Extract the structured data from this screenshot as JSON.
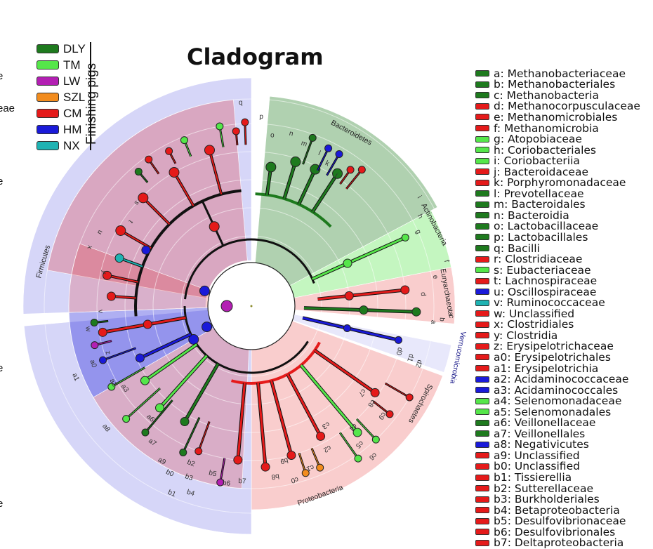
{
  "title": "Cladogram",
  "group_header": "Finishing pigs",
  "groups": [
    {
      "label": "DLY",
      "color": "#1e7a1e"
    },
    {
      "label": "TM",
      "color": "#55e64a"
    },
    {
      "label": "LW",
      "color": "#b31fb3"
    },
    {
      "label": "SZL",
      "color": "#f28c1e"
    },
    {
      "label": "CM",
      "color": "#e51a1a"
    },
    {
      "label": "HM",
      "color": "#1a1ad9"
    },
    {
      "label": "NX",
      "color": "#1fb3b3"
    }
  ],
  "edge_fragments": [
    "e",
    "eae",
    "e",
    "e",
    "e"
  ],
  "legend": [
    {
      "key": "a",
      "text": "a: Methanobacteriaceae",
      "group": "DLY"
    },
    {
      "key": "b",
      "text": "b: Methanobacteriales",
      "group": "DLY"
    },
    {
      "key": "c",
      "text": "c: Methanobacteria",
      "group": "DLY"
    },
    {
      "key": "d",
      "text": "d: Methanocorpusculaceae",
      "group": "CM"
    },
    {
      "key": "e",
      "text": "e: Methanomicrobiales",
      "group": "CM"
    },
    {
      "key": "f",
      "text": "f: Methanomicrobia",
      "group": "CM"
    },
    {
      "key": "g",
      "text": "g: Atopobiaceae",
      "group": "TM"
    },
    {
      "key": "h",
      "text": "h: Coriobacteriales",
      "group": "TM"
    },
    {
      "key": "i",
      "text": "i: Coriobacteriia",
      "group": "TM"
    },
    {
      "key": "j",
      "text": "j: Bacteroidaceae",
      "group": "CM"
    },
    {
      "key": "k",
      "text": "k: Porphyromonadaceae",
      "group": "CM"
    },
    {
      "key": "l",
      "text": "l: Prevotellaceae",
      "group": "DLY"
    },
    {
      "key": "m",
      "text": "m: Bacteroidales",
      "group": "DLY"
    },
    {
      "key": "n",
      "text": "n: Bacteroidia",
      "group": "DLY"
    },
    {
      "key": "o",
      "text": "o: Lactobacillaceae",
      "group": "DLY"
    },
    {
      "key": "p",
      "text": "p: Lactobacillales",
      "group": "DLY"
    },
    {
      "key": "q",
      "text": "q: Bacilli",
      "group": "DLY"
    },
    {
      "key": "r",
      "text": "r: Clostridiaceae",
      "group": "CM"
    },
    {
      "key": "s",
      "text": "s: Eubacteriaceae",
      "group": "TM"
    },
    {
      "key": "t",
      "text": "t: Lachnospiraceae",
      "group": "CM"
    },
    {
      "key": "u",
      "text": "u: Oscillospiraceae",
      "group": "HM"
    },
    {
      "key": "v",
      "text": "v: Ruminococcaceae",
      "group": "NX"
    },
    {
      "key": "w",
      "text": "w: Unclassified",
      "group": "CM"
    },
    {
      "key": "x",
      "text": "x: Clostridiales",
      "group": "CM"
    },
    {
      "key": "y",
      "text": "y: Clostridia",
      "group": "CM"
    },
    {
      "key": "z",
      "text": "z: Erysipelotrichaceae",
      "group": "CM"
    },
    {
      "key": "a0",
      "text": "a0: Erysipelotrichales",
      "group": "CM"
    },
    {
      "key": "a1",
      "text": "a1: Erysipelotrichia",
      "group": "CM"
    },
    {
      "key": "a2",
      "text": "a2: Acidaminococcaceae",
      "group": "HM"
    },
    {
      "key": "a3",
      "text": "a3: Acidaminococcales",
      "group": "HM"
    },
    {
      "key": "a4",
      "text": "a4: Selenomonadaceae",
      "group": "TM"
    },
    {
      "key": "a5",
      "text": "a5: Selenomonadales",
      "group": "TM"
    },
    {
      "key": "a6",
      "text": "a6: Veillonellaceae",
      "group": "DLY"
    },
    {
      "key": "a7",
      "text": "a7: Veillonellales",
      "group": "DLY"
    },
    {
      "key": "a8",
      "text": "a8: Negativicutes",
      "group": "HM"
    },
    {
      "key": "a9",
      "text": "a9: Unclassified",
      "group": "CM"
    },
    {
      "key": "b0",
      "text": "b0: Unclassified",
      "group": "CM"
    },
    {
      "key": "b1",
      "text": "b1: Tissierellia",
      "group": "CM"
    },
    {
      "key": "b2",
      "text": "b2: Sutterellaceae",
      "group": "CM"
    },
    {
      "key": "b3",
      "text": "b3: Burkholderiales",
      "group": "CM"
    },
    {
      "key": "b4",
      "text": "b4: Betaproteobacteria",
      "group": "CM"
    },
    {
      "key": "b5",
      "text": "b5: Desulfovibrionaceae",
      "group": "CM"
    },
    {
      "key": "b6",
      "text": "b6: Desulfovibrionales",
      "group": "CM"
    },
    {
      "key": "b7",
      "text": "b7: Deltaproteobacteria",
      "group": "CM"
    }
  ],
  "phyla": [
    {
      "name": "Bacteroidetes",
      "group": "DLY"
    },
    {
      "name": "Actinobacteria",
      "group": "TM"
    },
    {
      "name": "Euryarchaeota",
      "group": "CM"
    },
    {
      "name": "Verrucomicrobia",
      "group": "HM"
    },
    {
      "name": "Spirochaetes",
      "group": "CM"
    },
    {
      "name": "Proteobacteria",
      "group": "CM"
    },
    {
      "name": "Firmicutes",
      "group": "HM"
    }
  ],
  "sector_letters": [
    "q",
    "p",
    "o",
    "n",
    "m",
    "l",
    "k",
    "j",
    "i",
    "h",
    "g",
    "f",
    "e",
    "d",
    "c",
    "b",
    "a",
    "d0",
    "d1",
    "d2",
    "c7",
    "c8",
    "c9",
    "c6",
    "c5",
    "c4",
    "c3",
    "c2",
    "c1",
    "c0",
    "b9",
    "b8",
    "b7",
    "b6",
    "b5",
    "b4",
    "b3",
    "b2",
    "b1",
    "b0",
    "a9",
    "a7",
    "a6",
    "a8",
    "a3",
    "a2",
    "a1",
    "a0",
    "z",
    "w",
    "v",
    "y",
    "x",
    "u",
    "t",
    "s",
    "r"
  ]
}
